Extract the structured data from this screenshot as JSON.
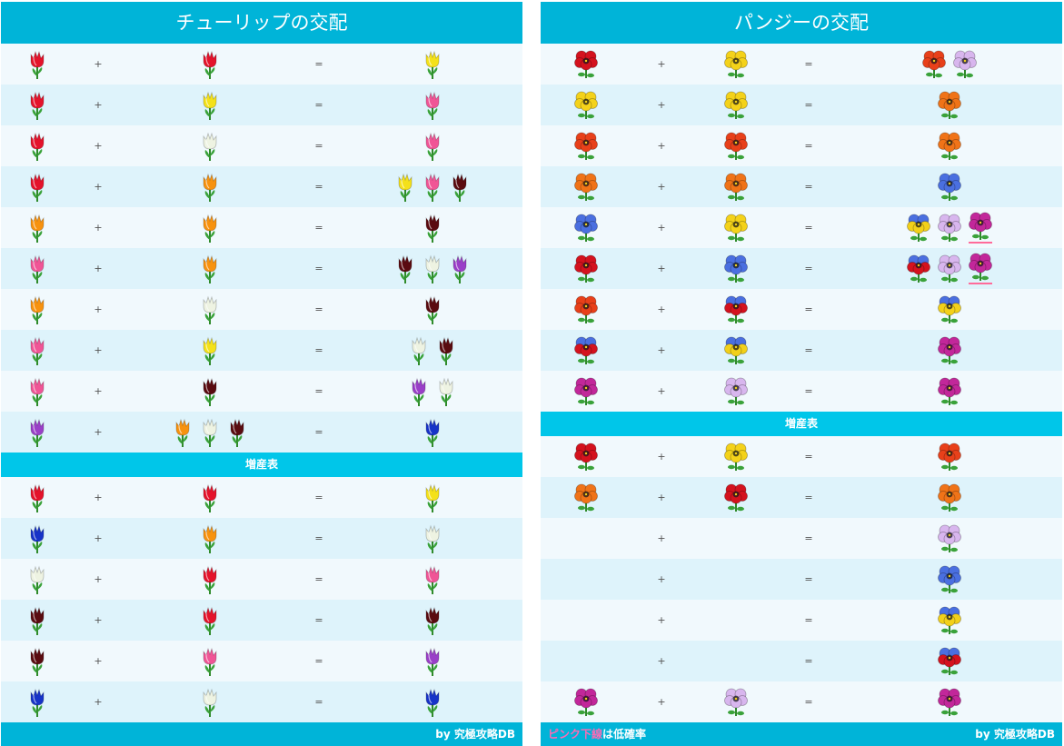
{
  "tulip": {
    "title": "チューリップの交配",
    "section_label": "増産表",
    "credit": "by 究極攻略DB",
    "plus": "+",
    "equals": "=",
    "colors": {
      "red": "#e4132b",
      "yellow": "#f4e11a",
      "white": "#eef3e2",
      "orange": "#f7920f",
      "pink": "#f05596",
      "black": "#5a0b10",
      "purple": "#9a3fc8",
      "blue": "#1733c8"
    },
    "rows": [
      {
        "a": [
          "red"
        ],
        "b": [
          "red"
        ],
        "r": [
          "yellow"
        ]
      },
      {
        "a": [
          "red"
        ],
        "b": [
          "yellow"
        ],
        "r": [
          "pink"
        ]
      },
      {
        "a": [
          "red"
        ],
        "b": [
          "white"
        ],
        "r": [
          "pink"
        ]
      },
      {
        "a": [
          "red"
        ],
        "b": [
          "orange"
        ],
        "r": [
          "yellow",
          "pink",
          "black"
        ]
      },
      {
        "a": [
          "orange"
        ],
        "b": [
          "orange"
        ],
        "r": [
          "black"
        ]
      },
      {
        "a": [
          "pink"
        ],
        "b": [
          "orange"
        ],
        "r": [
          "black",
          "white",
          "purple"
        ]
      },
      {
        "a": [
          "orange"
        ],
        "b": [
          "white"
        ],
        "r": [
          "black"
        ]
      },
      {
        "a": [
          "pink"
        ],
        "b": [
          "yellow"
        ],
        "r": [
          "white",
          "black"
        ]
      },
      {
        "a": [
          "pink"
        ],
        "b": [
          "black"
        ],
        "r": [
          "purple",
          "white"
        ]
      },
      {
        "a": [
          "purple"
        ],
        "b": [
          "orange",
          "white",
          "black"
        ],
        "r": [
          "blue"
        ]
      }
    ],
    "increase_rows": [
      {
        "a": [
          "red"
        ],
        "b": [
          "red"
        ],
        "r": [
          "yellow"
        ]
      },
      {
        "a": [
          "blue"
        ],
        "b": [
          "orange"
        ],
        "r": [
          "white"
        ]
      },
      {
        "a": [
          "white"
        ],
        "b": [
          "red"
        ],
        "r": [
          "pink"
        ]
      },
      {
        "a": [
          "black"
        ],
        "b": [
          "red"
        ],
        "r": [
          "black"
        ]
      },
      {
        "a": [
          "black"
        ],
        "b": [
          "pink"
        ],
        "r": [
          "purple"
        ]
      },
      {
        "a": [
          "blue"
        ],
        "b": [
          "white"
        ],
        "r": [
          "blue"
        ]
      }
    ]
  },
  "pansy": {
    "title": "パンジーの交配",
    "section_label": "増産表",
    "credit": "by 究極攻略DB",
    "note_pink": "ピンク下線",
    "note_rest": "は低確率",
    "plus": "+",
    "equals": "=",
    "colors": {
      "red": "#d4121e",
      "yellow": "#f4d21a",
      "orange": "#f07318",
      "redorange": "#e8401a",
      "bluepale": "#4a6fe0",
      "bluered": "#2a4fd0",
      "blueyellow": "#f2d01a",
      "lilac": "#d8b6ee",
      "magenta": "#c2279a",
      "blue": "#3b5fd8",
      "white": "#ffffff"
    },
    "rows": [
      {
        "a": [
          "red"
        ],
        "b": [
          "yellow"
        ],
        "r": [
          "redorange",
          "lilac"
        ]
      },
      {
        "a": [
          "yellow"
        ],
        "b": [
          "yellow"
        ],
        "r": [
          "orange"
        ]
      },
      {
        "a": [
          "redorange"
        ],
        "b": [
          "redorange"
        ],
        "r": [
          "orange"
        ]
      },
      {
        "a": [
          "orange"
        ],
        "b": [
          "orange"
        ],
        "r": [
          "bluepale"
        ]
      },
      {
        "a": [
          "bluepale"
        ],
        "b": [
          "yellow"
        ],
        "r": [
          "blueyellow",
          "lilac",
          "magenta"
        ],
        "underline": [
          2
        ]
      },
      {
        "a": [
          "red"
        ],
        "b": [
          "bluepale"
        ],
        "r": [
          "bluered",
          "lilac",
          "magenta"
        ],
        "underline": [
          2
        ]
      },
      {
        "a": [
          "redorange"
        ],
        "b": [
          "bluered"
        ],
        "r": [
          "blueyellow"
        ]
      },
      {
        "a": [
          "bluered"
        ],
        "b": [
          "blueyellow"
        ],
        "r": [
          "magenta"
        ]
      },
      {
        "a": [
          "magenta"
        ],
        "b": [
          "lilac"
        ],
        "r": [
          "magenta"
        ]
      }
    ],
    "increase_rows": [
      {
        "a": [
          "red"
        ],
        "b": [
          "yellow"
        ],
        "r": [
          "redorange"
        ]
      },
      {
        "a": [
          "orange"
        ],
        "b": [
          "red"
        ],
        "r": [
          "orange"
        ]
      },
      {
        "a": [],
        "b": [],
        "r": [
          "lilac"
        ]
      },
      {
        "a": [],
        "b": [],
        "r": [
          "bluepale"
        ]
      },
      {
        "a": [],
        "b": [],
        "r": [
          "blueyellow"
        ]
      },
      {
        "a": [],
        "b": [],
        "r": [
          "bluered"
        ]
      },
      {
        "a": [
          "magenta"
        ],
        "b": [
          "lilac"
        ],
        "r": [
          "magenta"
        ]
      }
    ]
  }
}
